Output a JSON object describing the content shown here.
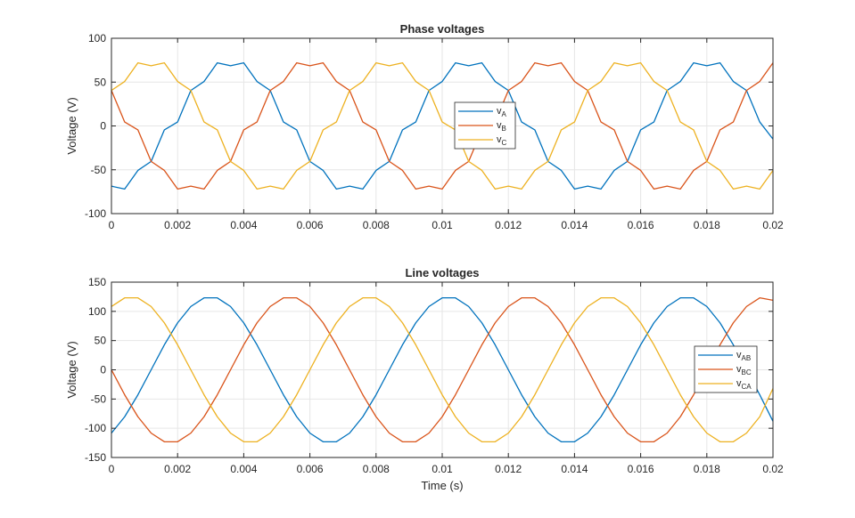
{
  "colors": {
    "A": "#0072BD",
    "B": "#D95319",
    "C": "#EDB120",
    "grid": "#e6e6e6",
    "axis": "#262626"
  },
  "chart_data": [
    {
      "type": "line",
      "title": "Phase voltages",
      "xlabel": "",
      "ylabel": "Voltage (V)",
      "xlim": [
        0,
        0.02
      ],
      "ylim": [
        -100,
        100
      ],
      "xticks": [
        0,
        0.002,
        0.004,
        0.006,
        0.008,
        0.01,
        0.012,
        0.014,
        0.016,
        0.018,
        0.02
      ],
      "xtick_labels": [
        "0",
        "0.002",
        "0.004",
        "0.006",
        "0.008",
        "0.01",
        "0.012",
        "0.014",
        "0.016",
        "0.018",
        "0.02"
      ],
      "yticks": [
        -100,
        -50,
        0,
        50,
        100
      ],
      "ytick_labels": [
        "-100",
        "-50",
        "0",
        "50",
        "100"
      ],
      "grid": true,
      "legend_placement": "center",
      "x": [
        0,
        0.0004,
        0.0008,
        0.0012,
        0.0016,
        0.002,
        0.0024,
        0.0028,
        0.0032,
        0.0036,
        0.004,
        0.0044,
        0.0048,
        0.0052,
        0.0056,
        0.006,
        0.0064,
        0.0068,
        0.0072,
        0.0076,
        0.008,
        0.0084,
        0.0088,
        0.0092,
        0.0096,
        0.01,
        0.0104,
        0.0108,
        0.0112,
        0.0116,
        0.012,
        0.0124,
        0.0128,
        0.0132,
        0.0136,
        0.014,
        0.0144,
        0.0148,
        0.0152,
        0.0156,
        0.016,
        0.0164,
        0.0168,
        0.0172,
        0.0176,
        0.018,
        0.0184,
        0.0188,
        0.0192,
        0.0196,
        0.02
      ],
      "series": [
        {
          "name": "vA",
          "label_main": "v",
          "label_sub": "A",
          "color": "#0072BD",
          "values": [
            -68.7,
            -72,
            -50.7,
            -40.5,
            -4.5,
            4.5,
            40.5,
            50.7,
            72,
            68.7,
            72,
            50.7,
            40.5,
            4.5,
            -4.5,
            -40.5,
            -50.7,
            -72,
            -68.7,
            -72,
            -50.7,
            -40.5,
            -4.5,
            4.5,
            40.5,
            50.7,
            72,
            68.7,
            72,
            50.7,
            40.5,
            4.5,
            -4.5,
            -40.5,
            -50.7,
            -72,
            -68.7,
            -72,
            -50.7,
            -40.5,
            -4.5,
            4.5,
            40.5,
            50.7,
            72,
            68.7,
            72,
            50.7,
            40.5,
            4.5,
            -15
          ]
        },
        {
          "name": "vB",
          "label_main": "v",
          "label_sub": "B",
          "color": "#D95319",
          "values": [
            40.5,
            4.5,
            -4.5,
            -40.5,
            -50.7,
            -72,
            -68.7,
            -72,
            -50.7,
            -40.5,
            -4.5,
            4.5,
            40.5,
            50.7,
            72,
            68.7,
            72,
            50.7,
            40.5,
            4.5,
            -4.5,
            -40.5,
            -50.7,
            -72,
            -68.7,
            -72,
            -50.7,
            -40.5,
            -4.5,
            4.5,
            40.5,
            50.7,
            72,
            68.7,
            72,
            50.7,
            40.5,
            4.5,
            -4.5,
            -40.5,
            -50.7,
            -72,
            -68.7,
            -72,
            -50.7,
            -40.5,
            -4.5,
            4.5,
            40.5,
            50.7,
            72
          ]
        },
        {
          "name": "vC",
          "label_main": "v",
          "label_sub": "C",
          "color": "#EDB120",
          "values": [
            40.5,
            50.7,
            72,
            68.7,
            72,
            50.7,
            40.5,
            4.5,
            -4.5,
            -40.5,
            -50.7,
            -72,
            -68.7,
            -72,
            -50.7,
            -40.5,
            -4.5,
            4.5,
            40.5,
            50.7,
            72,
            68.7,
            72,
            50.7,
            40.5,
            4.5,
            -4.5,
            -40.5,
            -50.7,
            -72,
            -68.7,
            -72,
            -50.7,
            -40.5,
            -4.5,
            4.5,
            40.5,
            50.7,
            72,
            68.7,
            72,
            50.7,
            40.5,
            4.5,
            -4.5,
            -40.5,
            -50.7,
            -72,
            -68.7,
            -72,
            -50.7
          ]
        }
      ]
    },
    {
      "type": "line",
      "title": "Line voltages",
      "xlabel": "Time (s)",
      "ylabel": "Voltage (V)",
      "xlim": [
        0,
        0.02
      ],
      "ylim": [
        -150,
        150
      ],
      "xticks": [
        0,
        0.002,
        0.004,
        0.006,
        0.008,
        0.01,
        0.012,
        0.014,
        0.016,
        0.018,
        0.02
      ],
      "xtick_labels": [
        "0",
        "0.002",
        "0.004",
        "0.006",
        "0.008",
        "0.01",
        "0.012",
        "0.014",
        "0.016",
        "0.018",
        "0.02"
      ],
      "yticks": [
        -150,
        -100,
        -50,
        0,
        50,
        100,
        150
      ],
      "ytick_labels": [
        "-150",
        "-100",
        "-50",
        "0",
        "50",
        "100",
        "150"
      ],
      "grid": true,
      "legend_placement": "east",
      "x": [
        0,
        0.0004,
        0.0008,
        0.0012,
        0.0016,
        0.002,
        0.0024,
        0.0028,
        0.0032,
        0.0036,
        0.004,
        0.0044,
        0.0048,
        0.0052,
        0.0056,
        0.006,
        0.0064,
        0.0068,
        0.0072,
        0.0076,
        0.008,
        0.0084,
        0.0088,
        0.0092,
        0.0096,
        0.01,
        0.0104,
        0.0108,
        0.0112,
        0.0116,
        0.012,
        0.0124,
        0.0128,
        0.0132,
        0.0136,
        0.014,
        0.0144,
        0.0148,
        0.0152,
        0.0156,
        0.016,
        0.0164,
        0.0168,
        0.0172,
        0.0176,
        0.018,
        0.0184,
        0.0188,
        0.0192,
        0.0196,
        0.02
      ],
      "series": [
        {
          "name": "vAB",
          "label_main": "v",
          "label_sub": "AB",
          "color": "#0072BD",
          "values": [
            -108.3,
            -80.3,
            -42.8,
            0,
            42.8,
            80.3,
            108.3,
            123.1,
            123.1,
            108.3,
            80.3,
            42.8,
            0,
            -42.8,
            -80.3,
            -108.3,
            -123.1,
            -123.1,
            -108.3,
            -80.3,
            -42.8,
            0,
            42.8,
            80.3,
            108.3,
            123.1,
            123.1,
            108.3,
            80.3,
            42.8,
            0,
            -42.8,
            -80.3,
            -108.3,
            -123.1,
            -123.1,
            -108.3,
            -80.3,
            -42.8,
            0,
            42.8,
            80.3,
            108.3,
            123.1,
            123.1,
            108.3,
            80.3,
            42.8,
            0,
            -42.8,
            -88
          ]
        },
        {
          "name": "vBC",
          "label_main": "v",
          "label_sub": "BC",
          "color": "#D95319",
          "values": [
            0,
            -42.8,
            -80.3,
            -108.3,
            -123.1,
            -123.1,
            -108.3,
            -80.3,
            -42.8,
            0,
            42.8,
            80.3,
            108.3,
            123.1,
            123.1,
            108.3,
            80.3,
            42.8,
            0,
            -42.8,
            -80.3,
            -108.3,
            -123.1,
            -123.1,
            -108.3,
            -80.3,
            -42.8,
            0,
            42.8,
            80.3,
            108.3,
            123.1,
            123.1,
            108.3,
            80.3,
            42.8,
            0,
            -42.8,
            -80.3,
            -108.3,
            -123.1,
            -123.1,
            -108.3,
            -80.3,
            -42.8,
            0,
            42.8,
            80.3,
            108.3,
            123.1,
            119
          ]
        },
        {
          "name": "vCA",
          "label_main": "v",
          "label_sub": "CA",
          "color": "#EDB120",
          "values": [
            108.3,
            123.1,
            123.1,
            108.3,
            80.3,
            42.8,
            0,
            -42.8,
            -80.3,
            -108.3,
            -123.1,
            -123.1,
            -108.3,
            -80.3,
            -42.8,
            0,
            42.8,
            80.3,
            108.3,
            123.1,
            123.1,
            108.3,
            80.3,
            42.8,
            0,
            -42.8,
            -80.3,
            -108.3,
            -123.1,
            -123.1,
            -108.3,
            -80.3,
            -42.8,
            0,
            42.8,
            80.3,
            108.3,
            123.1,
            123.1,
            108.3,
            80.3,
            42.8,
            0,
            -42.8,
            -80.3,
            -108.3,
            -123.1,
            -123.1,
            -108.3,
            -80.3,
            -32
          ]
        }
      ]
    }
  ]
}
